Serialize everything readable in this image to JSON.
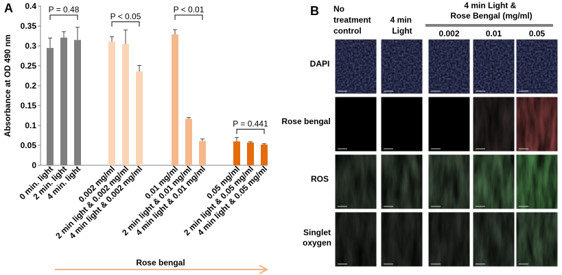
{
  "panel_a": {
    "letter": "A",
    "chart_data": {
      "type": "bar",
      "ylabel": "Absorbance at OD 490 nm",
      "ylim": [
        0,
        0.4
      ],
      "yticks": [
        "0",
        "0.05",
        "0.1",
        "0.15",
        "0.2",
        "0.25",
        "0.3",
        "0.35",
        "0.4"
      ],
      "grid": false,
      "groups": [
        {
          "color": "#7f7f7f",
          "bars": [
            {
              "label": "0 min. light",
              "value": 0.295,
              "error": 0.025
            },
            {
              "label": "2 min. light",
              "value": 0.321,
              "error": 0.015
            },
            {
              "label": "4 min. light",
              "value": 0.315,
              "error": 0.032
            }
          ],
          "annotation": "P = 0.48"
        },
        {
          "color": "#fbd5b5",
          "bars": [
            {
              "label": "0.002 mg/ml",
              "value": 0.311,
              "error": 0.012
            },
            {
              "label": "2 min light & 0.002 mg/ml",
              "value": 0.305,
              "error": 0.035
            },
            {
              "label": "4 min light & 0.002 mg/ml",
              "value": 0.236,
              "error": 0.015
            }
          ],
          "annotation": "P < 0.05"
        },
        {
          "color": "#f6b88b",
          "bars": [
            {
              "label": "0.01 mg/ml",
              "value": 0.329,
              "error": 0.012
            },
            {
              "label": "2 min light & 0.01 mg/ml",
              "value": 0.117,
              "error": 0.003
            },
            {
              "label": "4 min light & 0.01 mg/ml",
              "value": 0.061,
              "error": 0.005
            }
          ],
          "annotation": "P < 0.01"
        },
        {
          "color": "#e46c0a",
          "bars": [
            {
              "label": "0.05 mg/ml",
              "value": 0.06,
              "error": 0.01
            },
            {
              "label": "2 min light & 0.05 mg/ml",
              "value": 0.057,
              "error": 0.002
            },
            {
              "label": "4 min light & 0.05 mg/ml",
              "value": 0.052,
              "error": 0.002
            }
          ],
          "annotation": "P = 0.441"
        }
      ]
    },
    "arrow_label": "Rose bengal",
    "arrow_color": "#f4b183"
  },
  "panel_b": {
    "letter": "B",
    "col_header_1": "No treatment control",
    "col_header_2": "4 min Light",
    "col_header_group": "4 min Light & Rose Bengal (mg/ml)",
    "col_sub_headers": [
      "0.002",
      "0.01",
      "0.05"
    ],
    "row_labels": [
      "DAPI",
      "Rose bengal",
      "ROS",
      "Singlet oxygen"
    ],
    "row_colors": [
      "#1a2fd0",
      "#e01818",
      "#2fd02f",
      "#2fb02f"
    ],
    "intensity": [
      [
        0.8,
        0.8,
        0.8,
        0.8,
        0.8
      ],
      [
        0.0,
        0.0,
        0.0,
        0.05,
        0.85
      ],
      [
        0.22,
        0.28,
        0.35,
        0.6,
        0.85
      ],
      [
        0.05,
        0.06,
        0.08,
        0.25,
        0.6
      ]
    ]
  }
}
